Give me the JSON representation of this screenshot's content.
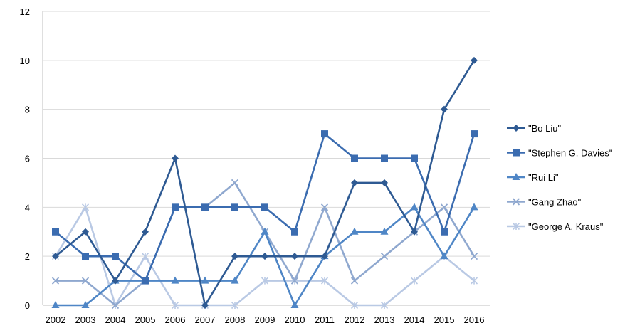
{
  "chart_data": {
    "type": "line",
    "title": "",
    "xlabel": "",
    "ylabel": "",
    "x": [
      "2002",
      "2003",
      "2004",
      "2005",
      "2006",
      "2007",
      "2008",
      "2009",
      "2010",
      "2011",
      "2012",
      "2013",
      "2014",
      "2015",
      "2016"
    ],
    "ylim": [
      0,
      12
    ],
    "yticks": [
      "0",
      "2",
      "4",
      "6",
      "8",
      "10",
      "12"
    ],
    "grid": "horizontal",
    "legend_position": "right",
    "series": [
      {
        "name": "\"Bo Liu\"",
        "marker": "diamond",
        "color": "#2e5a93",
        "values": [
          2,
          3,
          1,
          3,
          6,
          0,
          2,
          2,
          2,
          2,
          5,
          5,
          3,
          8,
          10
        ]
      },
      {
        "name": "\"Stephen G. Davies\"",
        "marker": "square",
        "color": "#3b6cb0",
        "values": [
          3,
          2,
          2,
          1,
          4,
          4,
          4,
          4,
          3,
          7,
          6,
          6,
          6,
          3,
          7
        ]
      },
      {
        "name": "\"Rui Li\"",
        "marker": "triangle",
        "color": "#4f86c6",
        "values": [
          0,
          0,
          1,
          1,
          1,
          1,
          1,
          3,
          0,
          2,
          3,
          3,
          4,
          2,
          4
        ]
      },
      {
        "name": "\"Gang Zhao\"",
        "marker": "x",
        "color": "#8fa8cf",
        "values": [
          1,
          1,
          0,
          1,
          4,
          4,
          5,
          3,
          1,
          4,
          1,
          2,
          3,
          4,
          2
        ]
      },
      {
        "name": "\"George A. Kraus\"",
        "marker": "star",
        "color": "#b9c9e4",
        "values": [
          2,
          4,
          0,
          2,
          0,
          0,
          0,
          1,
          1,
          1,
          0,
          0,
          1,
          2,
          1
        ]
      }
    ]
  }
}
